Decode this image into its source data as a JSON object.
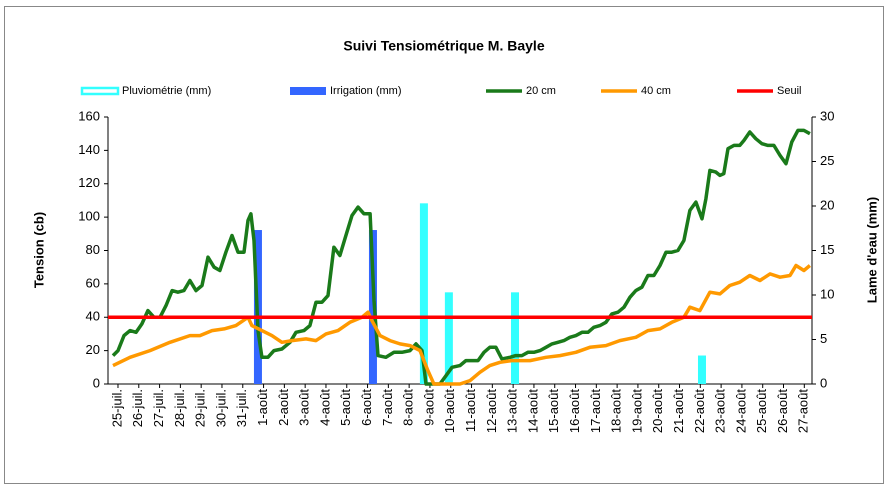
{
  "chart_data": {
    "type": "line",
    "title": "Suivi Tensiométrique M. Bayle",
    "ylabel": "Tension (cb)",
    "y2label": "Lame d'eau (mm)",
    "xlim": [
      -0.48,
      33.37
    ],
    "ylim": [
      0,
      160
    ],
    "y2lim": [
      0,
      30
    ],
    "yticks": [
      0,
      20,
      40,
      60,
      80,
      100,
      120,
      140,
      160
    ],
    "y2ticks": [
      0,
      5,
      10,
      15,
      20,
      25,
      30
    ],
    "xticks": [
      {
        "value": 0,
        "label": "25-juil."
      },
      {
        "value": 1,
        "label": "26-juil."
      },
      {
        "value": 2,
        "label": "27-juil."
      },
      {
        "value": 3,
        "label": "28-juil."
      },
      {
        "value": 4,
        "label": "29-juil."
      },
      {
        "value": 5,
        "label": "30-juil."
      },
      {
        "value": 6,
        "label": "31-juil."
      },
      {
        "value": 7,
        "label": "1-août"
      },
      {
        "value": 8,
        "label": "2-août"
      },
      {
        "value": 9,
        "label": "3-août"
      },
      {
        "value": 10,
        "label": "4-août"
      },
      {
        "value": 11,
        "label": "5-août"
      },
      {
        "value": 12,
        "label": "6-août"
      },
      {
        "value": 13,
        "label": "7-août"
      },
      {
        "value": 14,
        "label": "8-août"
      },
      {
        "value": 15,
        "label": "9-août"
      },
      {
        "value": 16,
        "label": "10-août"
      },
      {
        "value": 17,
        "label": "11-août"
      },
      {
        "value": 18,
        "label": "12-août"
      },
      {
        "value": 19,
        "label": "13-août"
      },
      {
        "value": 20,
        "label": "14-août"
      },
      {
        "value": 21,
        "label": "15-août"
      },
      {
        "value": 22,
        "label": "16-août"
      },
      {
        "value": 23,
        "label": "17-août"
      },
      {
        "value": 24,
        "label": "18-août"
      },
      {
        "value": 25,
        "label": "19-août"
      },
      {
        "value": 26,
        "label": "20-août"
      },
      {
        "value": 27,
        "label": "21-août"
      },
      {
        "value": 28,
        "label": "22-août"
      },
      {
        "value": 29,
        "label": "23-août"
      },
      {
        "value": 30,
        "label": "24-août"
      },
      {
        "value": 31,
        "label": "25-août"
      },
      {
        "value": 32,
        "label": "26-août"
      },
      {
        "value": 33,
        "label": "27-août"
      }
    ],
    "series": [
      {
        "name": "Pluviométrie (mm)",
        "type": "bar",
        "axis": "y2",
        "color": "#33ffff",
        "x": [
          14.71,
          15.91,
          19.09,
          28.08
        ],
        "values": [
          20.3,
          10.3,
          10.3,
          3.2
        ]
      },
      {
        "name": "Irrigation (mm)",
        "type": "bar",
        "axis": "y2",
        "color": "#3366ff",
        "x": [
          6.73,
          12.26
        ],
        "values": [
          17.3,
          17.3
        ]
      },
      {
        "name": "20 cm",
        "type": "line",
        "color": "#1a7a1a",
        "x": [
          -0.24,
          0,
          0.29,
          0.58,
          0.87,
          1.15,
          1.44,
          1.73,
          2.02,
          2.31,
          2.6,
          2.88,
          3.17,
          3.46,
          3.75,
          4.04,
          4.33,
          4.62,
          4.9,
          5.19,
          5.48,
          5.77,
          6.06,
          6.25,
          6.39,
          6.54,
          6.73,
          6.92,
          7.21,
          7.5,
          7.88,
          8.27,
          8.56,
          8.94,
          9.23,
          9.52,
          9.81,
          10.1,
          10.38,
          10.67,
          10.96,
          11.25,
          11.54,
          11.83,
          12.12,
          12.31,
          12.5,
          12.88,
          13.27,
          13.65,
          14.04,
          14.33,
          14.62,
          14.81,
          15.48,
          15.77,
          16.06,
          16.44,
          16.73,
          17.02,
          17.31,
          17.6,
          17.88,
          18.17,
          18.46,
          18.85,
          19.13,
          19.42,
          19.71,
          20,
          20.29,
          20.58,
          20.87,
          21.15,
          21.44,
          21.73,
          22.02,
          22.31,
          22.6,
          22.88,
          23.17,
          23.46,
          23.75,
          24.04,
          24.33,
          24.62,
          24.9,
          25.19,
          25.48,
          25.77,
          26.06,
          26.35,
          26.63,
          26.92,
          27.21,
          27.5,
          27.79,
          28.08,
          28.27,
          28.46,
          28.75,
          28.94,
          29.13,
          29.33,
          29.62,
          29.9,
          30.1,
          30.38,
          30.67,
          30.96,
          31.25,
          31.54,
          31.83,
          32.12,
          32.4,
          32.69,
          32.98,
          33.27
        ],
        "values": [
          17,
          20,
          29,
          32,
          31,
          36,
          44,
          40,
          40,
          47,
          56,
          55,
          56,
          62,
          56,
          59,
          76,
          70,
          68,
          79,
          89,
          79,
          79,
          98,
          102,
          86,
          32,
          16,
          16,
          20,
          21,
          25,
          31,
          32,
          35,
          49,
          49,
          53,
          82,
          77,
          89,
          101,
          106,
          102,
          102,
          50,
          17,
          16,
          19,
          19,
          20,
          24,
          20,
          0,
          0,
          5,
          10,
          11,
          14,
          14,
          14,
          19,
          22,
          22,
          15,
          16,
          17,
          17,
          19,
          19,
          20,
          22,
          24,
          25,
          26,
          28,
          29,
          31,
          31,
          34,
          35,
          37,
          42,
          43,
          46,
          52,
          56,
          58,
          65,
          65,
          71,
          79,
          79,
          80,
          86,
          104,
          109,
          99,
          111,
          128,
          127,
          125,
          126,
          141,
          143,
          143,
          146,
          151,
          147,
          144,
          143,
          143,
          137,
          132,
          145,
          152,
          152,
          150
        ]
      },
      {
        "name": "40 cm",
        "type": "line",
        "color": "#ff9900",
        "x": [
          -0.24,
          0.58,
          1.54,
          2.5,
          3.46,
          3.94,
          4.52,
          5.1,
          5.67,
          6.25,
          6.44,
          6.92,
          7.4,
          7.88,
          8.37,
          9.04,
          9.52,
          10,
          10.58,
          11.15,
          11.73,
          12.02,
          12.21,
          12.6,
          13.08,
          13.56,
          14.04,
          14.52,
          14.9,
          15.19,
          16.44,
          16.92,
          17.4,
          17.88,
          18.37,
          18.94,
          19.81,
          20.58,
          21.25,
          22.02,
          22.69,
          23.46,
          24.13,
          24.9,
          25.48,
          26.06,
          26.63,
          27.21,
          27.5,
          27.98,
          28.46,
          28.94,
          29.42,
          29.9,
          30.38,
          30.87,
          31.35,
          31.83,
          32.31,
          32.6,
          32.98,
          33.27
        ],
        "values": [
          11,
          16,
          20,
          25,
          29,
          29,
          32,
          33,
          35,
          40,
          35,
          32,
          29,
          25,
          26,
          27,
          26,
          30,
          32,
          37,
          40,
          43,
          38,
          29,
          26,
          24,
          23,
          20,
          8,
          0,
          0,
          2,
          7,
          11,
          13,
          14,
          14,
          16,
          17,
          19,
          22,
          23,
          26,
          28,
          32,
          33,
          37,
          40,
          46,
          44,
          55,
          54,
          59,
          61,
          65,
          62,
          66,
          64,
          65,
          71,
          68,
          71
        ]
      },
      {
        "name": "Seuil",
        "type": "line",
        "color": "#ff0000",
        "x": [
          -0.48,
          33.37
        ],
        "values": [
          40,
          40
        ]
      }
    ]
  }
}
